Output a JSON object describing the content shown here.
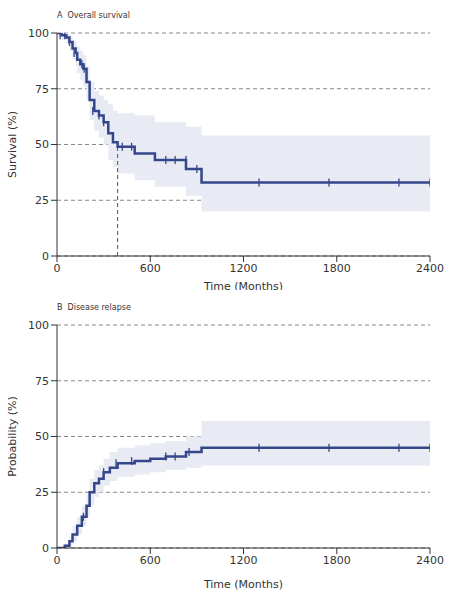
{
  "chart_data": [
    {
      "type": "line",
      "panel": "A",
      "title": "Overall survival",
      "xlabel": "Time (Months)",
      "ylabel": "Survival (%)",
      "xlim": [
        0,
        2400
      ],
      "ylim": [
        0,
        100
      ],
      "xticks": [
        0,
        600,
        1200,
        1800,
        2400
      ],
      "yticks": [
        0,
        25,
        50,
        75,
        100
      ],
      "grid": true,
      "series": [
        {
          "color": "#34478a",
          "line_style": "step",
          "marker": "vline",
          "x": [
            0,
            30,
            60,
            80,
            100,
            120,
            130,
            150,
            170,
            190,
            210,
            240,
            270,
            300,
            330,
            360,
            390,
            500,
            630,
            830,
            930,
            2400
          ],
          "values": [
            100,
            99,
            98,
            96,
            93,
            91,
            88,
            86,
            84,
            78,
            70,
            65,
            63,
            60,
            55,
            51,
            49,
            46,
            43,
            39,
            33,
            33
          ],
          "ci_lower": [
            100,
            97,
            95,
            92,
            88,
            85,
            82,
            79,
            76,
            70,
            61,
            56,
            53,
            50,
            43,
            40,
            37,
            34,
            31,
            27,
            20,
            20
          ],
          "ci_upper": [
            100,
            100,
            100,
            99,
            97,
            96,
            94,
            92,
            90,
            85,
            78,
            74,
            72,
            70,
            68,
            65,
            64,
            63,
            60,
            58,
            54,
            54
          ],
          "censored_x": [
            20,
            50,
            80,
            110,
            160,
            175,
            230,
            270,
            300,
            420,
            480,
            700,
            760,
            830,
            900,
            1300,
            1750,
            2200,
            2400
          ],
          "censored_y": [
            99,
            99,
            96,
            91,
            86,
            84,
            65,
            63,
            60,
            49,
            49,
            43,
            43,
            43,
            39,
            33,
            33,
            33,
            33
          ]
        }
      ],
      "median_survival": 390
    },
    {
      "type": "line",
      "panel": "B",
      "title": "Disease relapse",
      "xlabel": "Time (Months)",
      "ylabel": "Probability (%)",
      "xlim": [
        0,
        2400
      ],
      "ylim": [
        0,
        100
      ],
      "xticks": [
        0,
        600,
        1200,
        1800,
        2400
      ],
      "yticks": [
        0,
        25,
        50,
        75,
        100
      ],
      "grid": true,
      "series": [
        {
          "color": "#34478a",
          "line_style": "step",
          "marker": "vline",
          "x": [
            0,
            50,
            80,
            100,
            130,
            160,
            190,
            210,
            240,
            270,
            300,
            340,
            390,
            500,
            600,
            700,
            830,
            930,
            2400
          ],
          "values": [
            0,
            1,
            3,
            6,
            10,
            14,
            19,
            25,
            29,
            31,
            34,
            36,
            38,
            39,
            40,
            41,
            43,
            45,
            45
          ],
          "ci_lower": [
            0,
            0,
            1,
            3,
            6,
            10,
            14,
            19,
            23,
            25,
            28,
            30,
            32,
            33,
            34,
            35,
            36,
            37,
            37
          ],
          "ci_upper": [
            0,
            2,
            5,
            10,
            14,
            19,
            24,
            31,
            35,
            37,
            40,
            43,
            45,
            46,
            47,
            48,
            50,
            57,
            58
          ],
          "censored_x": [
            170,
            300,
            380,
            480,
            700,
            760,
            850,
            1300,
            1750,
            2200,
            2400
          ],
          "censored_y": [
            14,
            34,
            38,
            39,
            41,
            41,
            43,
            45,
            45,
            45,
            45
          ]
        }
      ]
    }
  ]
}
